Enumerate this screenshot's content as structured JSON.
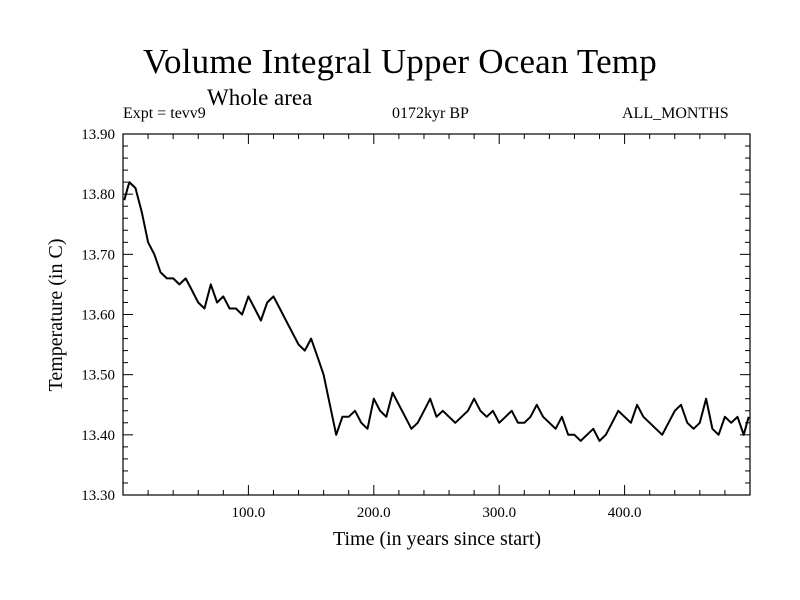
{
  "chart_data": {
    "type": "line",
    "title": "Volume Integral Upper Ocean Temp",
    "subtitle": "Whole area",
    "annotations": {
      "left": "Expt = tevv9",
      "center": "0172kyr BP",
      "right": "ALL_MONTHS"
    },
    "xlabel": "Time (in years since start)",
    "ylabel": "Temperature (in C)",
    "xlim": [
      0,
      500
    ],
    "ylim": [
      13.3,
      13.9
    ],
    "xticks": [
      100,
      200,
      300,
      400
    ],
    "xtick_labels": [
      "100.0",
      "200.0",
      "300.0",
      "400.0"
    ],
    "yticks": [
      13.3,
      13.4,
      13.5,
      13.6,
      13.7,
      13.8,
      13.9
    ],
    "ytick_labels": [
      "13.30",
      "13.40",
      "13.50",
      "13.60",
      "13.70",
      "13.80",
      "13.90"
    ],
    "grid": false,
    "series": [
      {
        "x": [
          1,
          5,
          10,
          15,
          20,
          25,
          30,
          35,
          40,
          45,
          50,
          55,
          60,
          65,
          70,
          75,
          80,
          85,
          90,
          95,
          100,
          105,
          110,
          115,
          120,
          125,
          130,
          135,
          140,
          145,
          150,
          155,
          160,
          165,
          170,
          175,
          180,
          185,
          190,
          195,
          200,
          205,
          210,
          215,
          220,
          225,
          230,
          235,
          240,
          245,
          250,
          255,
          260,
          265,
          270,
          275,
          280,
          285,
          290,
          295,
          300,
          305,
          310,
          315,
          320,
          325,
          330,
          335,
          340,
          345,
          350,
          355,
          360,
          365,
          370,
          375,
          380,
          385,
          390,
          395,
          400,
          405,
          410,
          415,
          420,
          425,
          430,
          435,
          440,
          445,
          450,
          455,
          460,
          465,
          470,
          475,
          480,
          485,
          490,
          495,
          499
        ],
        "y": [
          13.79,
          13.82,
          13.81,
          13.77,
          13.72,
          13.7,
          13.67,
          13.66,
          13.66,
          13.65,
          13.66,
          13.64,
          13.62,
          13.61,
          13.65,
          13.62,
          13.63,
          13.61,
          13.61,
          13.6,
          13.63,
          13.61,
          13.59,
          13.62,
          13.63,
          13.61,
          13.59,
          13.57,
          13.55,
          13.54,
          13.56,
          13.53,
          13.5,
          13.45,
          13.4,
          13.43,
          13.43,
          13.44,
          13.42,
          13.41,
          13.46,
          13.44,
          13.43,
          13.47,
          13.45,
          13.43,
          13.41,
          13.42,
          13.44,
          13.46,
          13.43,
          13.44,
          13.43,
          13.42,
          13.43,
          13.44,
          13.46,
          13.44,
          13.43,
          13.44,
          13.42,
          13.43,
          13.44,
          13.42,
          13.42,
          13.43,
          13.45,
          13.43,
          13.42,
          13.41,
          13.43,
          13.4,
          13.4,
          13.39,
          13.4,
          13.41,
          13.39,
          13.4,
          13.42,
          13.44,
          13.43,
          13.42,
          13.45,
          13.43,
          13.42,
          13.41,
          13.4,
          13.42,
          13.44,
          13.45,
          13.42,
          13.41,
          13.42,
          13.46,
          13.41,
          13.4,
          13.43,
          13.42,
          13.43,
          13.4,
          13.43
        ]
      }
    ]
  }
}
